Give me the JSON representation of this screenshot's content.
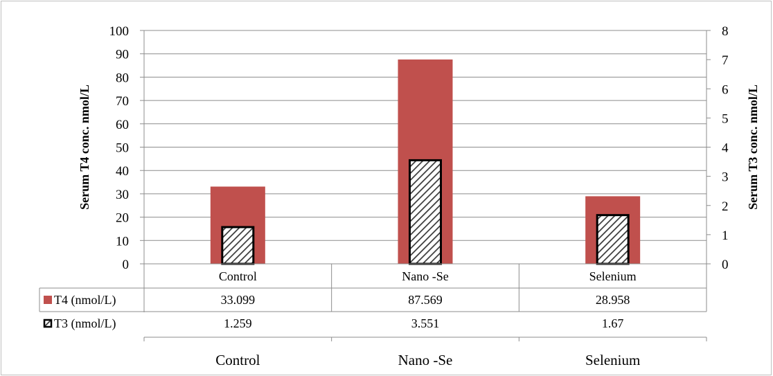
{
  "chart_data": {
    "type": "bar",
    "categories": [
      "Control",
      "Nano -Se",
      "Selenium"
    ],
    "series": [
      {
        "name": "T4 (nmol/L)",
        "axis": "left",
        "values": [
          33.099,
          87.569,
          28.958
        ],
        "value_labels": [
          "33.099",
          "87.569",
          "28.958"
        ],
        "color": "#c0504d"
      },
      {
        "name": "T3 (nmol/L)",
        "axis": "right",
        "values": [
          1.259,
          3.551,
          1.67
        ],
        "value_labels": [
          "1.259",
          "3.551",
          "1.67"
        ],
        "color": "#1f1f1f",
        "pattern": "diagonal-hatch"
      }
    ],
    "ylabel": "Serum T4 conc. nmol/L",
    "y2label": "Serum T3 conc. nmol/L",
    "ylim": [
      0,
      100
    ],
    "y2lim": [
      0,
      8
    ],
    "yticks": [
      "0",
      "10",
      "20",
      "30",
      "40",
      "50",
      "60",
      "70",
      "80",
      "90",
      "100"
    ],
    "y2ticks": [
      "0",
      "1",
      "2",
      "3",
      "4",
      "5",
      "6",
      "7",
      "8"
    ],
    "grid": true,
    "legend": "data-table"
  }
}
